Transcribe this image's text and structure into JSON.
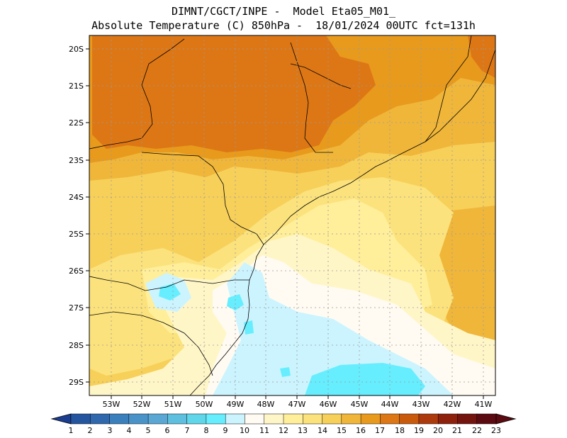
{
  "header": {
    "line1": "DIMNT/CGCT/INPE -  Model Eta05_M01_",
    "line2": "Absolute Temperature (C) 850hPa -  18/01/2024 00UTC fct=131h"
  },
  "lat_labels": [
    "20S",
    "21S",
    "22S",
    "23S",
    "24S",
    "25S",
    "26S",
    "27S",
    "28S",
    "29S"
  ],
  "lon_labels": [
    "53W",
    "52W",
    "51W",
    "50W",
    "49W",
    "48W",
    "47W",
    "46W",
    "45W",
    "44W",
    "43W",
    "42W",
    "41W"
  ],
  "colorbar": {
    "labels": [
      "1",
      "2",
      "3",
      "4",
      "5",
      "6",
      "7",
      "8",
      "9",
      "10",
      "11",
      "12",
      "13",
      "14",
      "15",
      "16",
      "17",
      "18",
      "19",
      "20",
      "21",
      "22",
      "23"
    ],
    "colors": [
      "#1a3d8f",
      "#25559e",
      "#2f68ad",
      "#3b7fbd",
      "#4a93c9",
      "#5aa7d4",
      "#5ec0de",
      "#5fd6ea",
      "#66eeff",
      "#ccf4ff",
      "#fffbf2",
      "#fff6c8",
      "#ffee9a",
      "#fbe27c",
      "#f7d05a",
      "#f0b63a",
      "#e89a1d",
      "#dd7715",
      "#c95a0c",
      "#ad3a0c",
      "#8e210c",
      "#74140f",
      "#5a0a10"
    ]
  }
}
